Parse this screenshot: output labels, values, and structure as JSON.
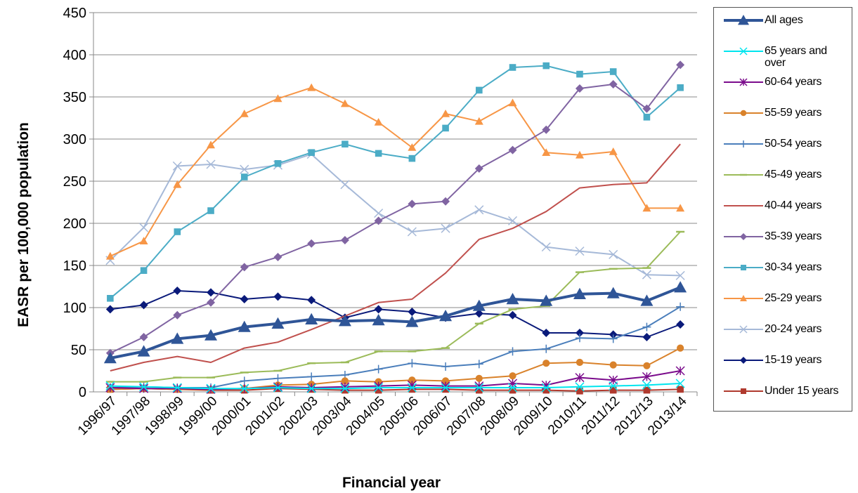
{
  "chart_data": {
    "type": "line",
    "y_label": "EASR per 100,000 population",
    "x_label": "Financial year",
    "categories": [
      "1996/97",
      "1997/98",
      "1998/99",
      "1999/00",
      "2000/01",
      "2001/02",
      "2002/03",
      "2003/04",
      "2004/05",
      "2005/06",
      "2006/07",
      "2007/08",
      "2008/09",
      "2009/10",
      "2010/11",
      "2011/12",
      "2012/13",
      "2013/14"
    ],
    "ylim": [
      0,
      450
    ],
    "yticks": [
      0,
      50,
      100,
      150,
      200,
      250,
      300,
      350,
      400,
      450
    ],
    "grid": true,
    "series": [
      {
        "name": "All ages",
        "color": "#2f5597",
        "marker": "triangle",
        "line_width": 4,
        "values": [
          40,
          48,
          63,
          67,
          77,
          81,
          86,
          84,
          85,
          83,
          90,
          102,
          110,
          108,
          116,
          117,
          108,
          124
        ]
      },
      {
        "name": "65 years and over",
        "color": "#00e5ee",
        "marker": "x",
        "line_width": 2,
        "values": [
          7,
          6,
          5,
          4,
          4,
          5,
          4,
          4,
          5,
          5,
          5,
          5,
          5,
          5,
          6,
          7,
          8,
          10
        ]
      },
      {
        "name": "60-64 years",
        "color": "#7b0c8c",
        "marker": "asterisk",
        "line_width": 2,
        "values": [
          5,
          4,
          4,
          3,
          4,
          6,
          5,
          6,
          7,
          8,
          7,
          7,
          10,
          8,
          17,
          14,
          18,
          25
        ]
      },
      {
        "name": "55-59 years",
        "color": "#d9822b",
        "marker": "circle",
        "line_width": 2,
        "values": [
          3,
          4,
          3,
          3,
          4,
          8,
          9,
          13,
          12,
          14,
          13,
          16,
          19,
          34,
          35,
          32,
          31,
          52
        ]
      },
      {
        "name": "50-54 years",
        "color": "#4a7ebb",
        "marker": "plus",
        "line_width": 2,
        "values": [
          5,
          6,
          5,
          5,
          13,
          16,
          18,
          20,
          27,
          34,
          30,
          33,
          48,
          51,
          64,
          63,
          77,
          101
        ]
      },
      {
        "name": "45-49 years",
        "color": "#9bbb59",
        "marker": "dash",
        "line_width": 2,
        "values": [
          12,
          12,
          17,
          17,
          23,
          25,
          34,
          35,
          48,
          48,
          52,
          81,
          98,
          102,
          142,
          146,
          147,
          190
        ]
      },
      {
        "name": "40-44 years",
        "color": "#c0504d",
        "marker": "none",
        "line_width": 2,
        "values": [
          25,
          35,
          42,
          35,
          52,
          59,
          74,
          90,
          106,
          110,
          141,
          181,
          194,
          214,
          242,
          246,
          248,
          294
        ]
      },
      {
        "name": "35-39 years",
        "color": "#8064a2",
        "marker": "diamond",
        "line_width": 2,
        "values": [
          46,
          65,
          91,
          106,
          148,
          160,
          176,
          180,
          203,
          223,
          226,
          265,
          287,
          311,
          360,
          365,
          336,
          388
        ]
      },
      {
        "name": "30-34 years",
        "color": "#4bacc6",
        "marker": "square",
        "line_width": 2,
        "values": [
          111,
          144,
          190,
          215,
          255,
          271,
          284,
          294,
          283,
          277,
          313,
          358,
          385,
          387,
          377,
          380,
          326,
          361
        ]
      },
      {
        "name": "25-29 years",
        "color": "#f79646",
        "marker": "triangle",
        "line_width": 2,
        "values": [
          161,
          179,
          246,
          293,
          330,
          348,
          361,
          342,
          320,
          290,
          330,
          321,
          343,
          284,
          281,
          285,
          218,
          218
        ]
      },
      {
        "name": "20-24 years",
        "color": "#a6b9d8",
        "marker": "x",
        "line_width": 2,
        "values": [
          156,
          195,
          268,
          270,
          264,
          269,
          282,
          246,
          212,
          190,
          194,
          216,
          203,
          172,
          167,
          163,
          139,
          138
        ]
      },
      {
        "name": "15-19 years",
        "color": "#0a1a7a",
        "marker": "diamond",
        "line_width": 2,
        "values": [
          98,
          103,
          120,
          118,
          110,
          113,
          109,
          88,
          98,
          95,
          88,
          93,
          91,
          70,
          70,
          68,
          65,
          80
        ]
      },
      {
        "name": "Under 15 years",
        "color": "#b03a2e",
        "marker": "square",
        "line_width": 2,
        "values": [
          3,
          4,
          3,
          2,
          2,
          4,
          3,
          2,
          2,
          3,
          3,
          2,
          2,
          2,
          1,
          2,
          2,
          3
        ]
      }
    ]
  }
}
